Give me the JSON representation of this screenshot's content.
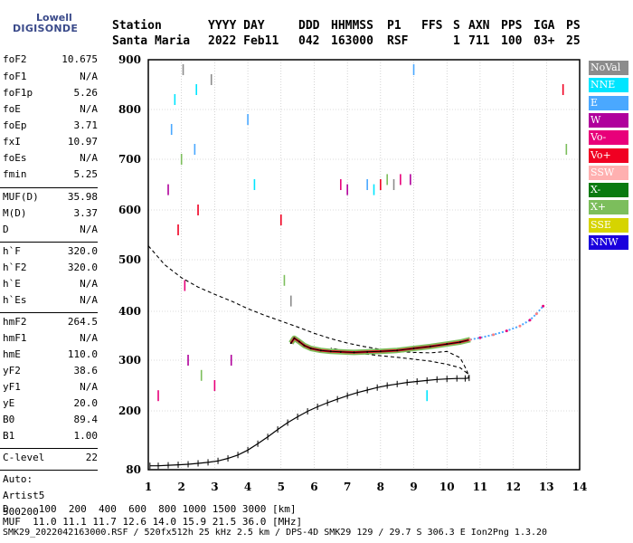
{
  "logo": {
    "line1": "Lowell",
    "line2": "DIGISONDE"
  },
  "header": {
    "row1": [
      "Station",
      "YYYY DAY",
      "DDD",
      "HHMMSS",
      "P1",
      "FFS",
      "S",
      "AXN",
      "PPS",
      "IGA",
      "PS"
    ],
    "row2": [
      "Santa Maria",
      "2022 Feb11",
      "042",
      "163000",
      "RSF",
      "1",
      "711",
      "100",
      "03+",
      "25"
    ]
  },
  "params": [
    {
      "label": "foF2",
      "value": "10.675"
    },
    {
      "label": "foF1",
      "value": "N/A"
    },
    {
      "label": "foF1p",
      "value": "5.26"
    },
    {
      "label": "foE",
      "value": "N/A"
    },
    {
      "label": "foEp",
      "value": "3.71"
    },
    {
      "label": "fxI",
      "value": "10.97"
    },
    {
      "label": "foEs",
      "value": "N/A"
    },
    {
      "label": "fmin",
      "value": "5.25"
    },
    {
      "label": "MUF(D)",
      "value": "35.98"
    },
    {
      "label": "M(D)",
      "value": "3.37"
    },
    {
      "label": "D",
      "value": "N/A"
    },
    {
      "label": "h`F",
      "value": "320.0"
    },
    {
      "label": "h`F2",
      "value": "320.0"
    },
    {
      "label": "h`E",
      "value": "N/A"
    },
    {
      "label": "h`Es",
      "value": "N/A"
    },
    {
      "label": "hmF2",
      "value": "264.5"
    },
    {
      "label": "hmF1",
      "value": "N/A"
    },
    {
      "label": "hmE",
      "value": "110.0"
    },
    {
      "label": "yF2",
      "value": "38.6"
    },
    {
      "label": "yF1",
      "value": "N/A"
    },
    {
      "label": "yE",
      "value": "20.0"
    },
    {
      "label": "B0",
      "value": "89.4"
    },
    {
      "label": "B1",
      "value": "1.00"
    },
    {
      "label": "C-level",
      "value": "22"
    }
  ],
  "auto": {
    "line1": "Auto:",
    "line2": "Artist5",
    "line3": "500200"
  },
  "legend": [
    {
      "label": "NoVal",
      "color": "#8c8c8c"
    },
    {
      "label": "NNE",
      "color": "#00e5ff"
    },
    {
      "label": "E",
      "color": "#4aa8ff"
    },
    {
      "label": "W",
      "color": "#b0009c"
    },
    {
      "label": "Vo-",
      "color": "#e8007a"
    },
    {
      "label": "Vo+",
      "color": "#f00022"
    },
    {
      "label": "SSW",
      "color": "#ffb0b0"
    },
    {
      "label": "X-",
      "color": "#0a7a10"
    },
    {
      "label": "X+",
      "color": "#7cbe5c"
    },
    {
      "label": "SSE",
      "color": "#d6d400"
    },
    {
      "label": "NNW",
      "color": "#1a00dd"
    }
  ],
  "bottom": {
    "d_line": "D     100  200  400  600  800 1000 1500 3000 [km]",
    "muf_line": "MUF  11.0 11.1 11.7 12.6 14.0 15.9 21.5 36.0 [MHz]",
    "info_line": "SMK29_2022042163000.RSF / 520fx512h 25 kHz 2.5 km / DPS-4D SMK29 129 / 29.7 S 306.3 E Ion2Png 1.3.20"
  },
  "chart_data": {
    "type": "scatter",
    "xlim": [
      1,
      14
    ],
    "ylim": [
      80,
      900
    ],
    "x_ticks": [
      "1",
      "2",
      "3",
      "4",
      "5",
      "6",
      "7",
      "8",
      "9",
      "10",
      "11",
      "12",
      "13",
      "14"
    ],
    "y_ticks": [
      "80",
      "200",
      "300",
      "400",
      "500",
      "600",
      "700",
      "800",
      "900"
    ],
    "grid": true,
    "series": [
      {
        "role": "f2-trace-ordinary",
        "x": [
          5.3,
          5.4,
          5.55,
          5.7,
          5.9,
          6.2,
          6.5,
          6.8,
          7.2,
          7.6,
          8.0,
          8.5,
          9.0,
          9.5,
          10.0,
          10.4,
          10.7
        ],
        "y": [
          335,
          345,
          338,
          330,
          324,
          320,
          318,
          317,
          316,
          317,
          318,
          320,
          324,
          328,
          333,
          337,
          342
        ]
      },
      {
        "role": "f2-trace-extraordinary",
        "x": [
          10.7,
          11.0,
          11.4,
          11.8,
          12.2,
          12.5,
          12.7,
          12.9
        ],
        "y": [
          342,
          346,
          352,
          360,
          370,
          382,
          395,
          410
        ]
      },
      {
        "role": "model-virtual-height",
        "x": [
          1.0,
          1.5,
          2.0,
          2.5,
          3.0,
          3.5,
          4.0,
          4.5,
          5.0,
          5.5,
          6.0,
          6.5,
          7.0,
          7.5,
          8.0,
          8.5,
          9.0,
          9.5,
          10.0,
          10.4,
          10.6,
          10.67,
          10.6,
          10.4,
          10.0,
          9.5,
          9.0,
          8.5,
          8.0,
          7.5,
          7.0,
          6.5
        ],
        "y": [
          528,
          490,
          465,
          447,
          433,
          420,
          405,
          392,
          380,
          368,
          355,
          344,
          335,
          328,
          322,
          318,
          316,
          315,
          318,
          305,
          280,
          265,
          275,
          285,
          292,
          298,
          302,
          306,
          309,
          313,
          318,
          325
        ]
      },
      {
        "role": "true-height-profile",
        "x": [
          1.05,
          1.3,
          1.6,
          1.9,
          2.2,
          2.5,
          2.8,
          3.1,
          3.4,
          3.7,
          4.0,
          4.3,
          4.6,
          4.9,
          5.2,
          5.5,
          5.8,
          6.1,
          6.4,
          6.7,
          7.0,
          7.3,
          7.6,
          7.9,
          8.2,
          8.5,
          8.8,
          9.1,
          9.4,
          9.7,
          10.0,
          10.3,
          10.55,
          10.67
        ],
        "y": [
          88,
          88,
          89,
          90,
          91,
          93,
          95,
          98,
          103,
          110,
          120,
          133,
          147,
          162,
          176,
          188,
          199,
          208,
          216,
          223,
          230,
          236,
          241,
          246,
          250,
          253,
          256,
          258,
          260,
          262,
          263,
          264,
          264,
          265
        ]
      },
      {
        "role": "scattered-echoes",
        "x": [
          1.3,
          1.6,
          1.7,
          1.8,
          1.9,
          2.0,
          2.05,
          2.1,
          2.2,
          2.4,
          2.45,
          2.5,
          2.6,
          2.9,
          3.0,
          3.5,
          4.0,
          4.2,
          5.0,
          5.1,
          5.3,
          6.8,
          7.0,
          7.6,
          7.8,
          8.0,
          8.2,
          8.4,
          8.6,
          8.9,
          9.0,
          9.4,
          13.5,
          13.6
        ],
        "y": [
          230,
          640,
          760,
          820,
          560,
          700,
          880,
          450,
          300,
          720,
          840,
          600,
          270,
          860,
          250,
          300,
          780,
          650,
          580,
          460,
          420,
          650,
          640,
          650,
          640,
          650,
          660,
          650,
          660,
          660,
          880,
          230,
          840,
          720
        ]
      }
    ]
  }
}
